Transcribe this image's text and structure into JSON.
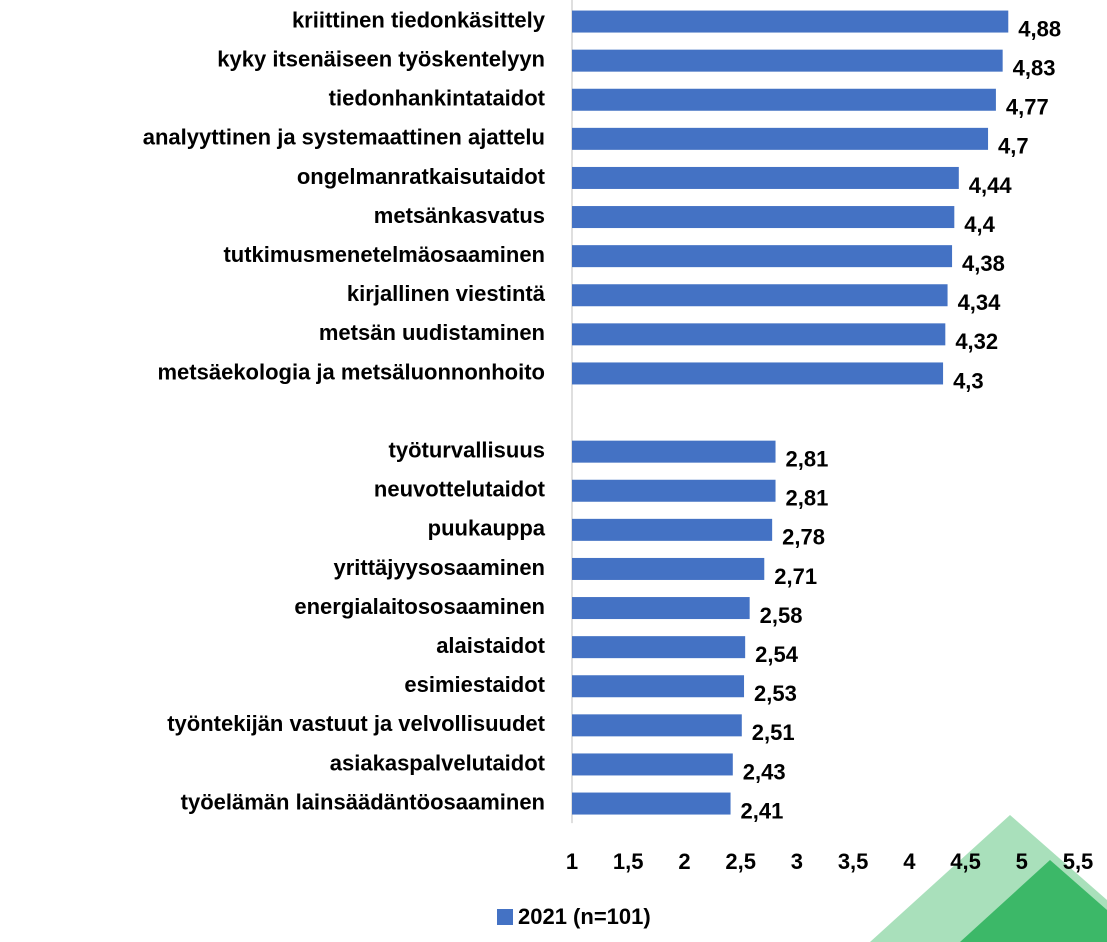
{
  "chart_data": {
    "type": "bar",
    "orientation": "horizontal",
    "categories": [
      "kriittinen tiedonkäsittely",
      "kyky itsenäiseen työskentelyyn",
      "tiedonhankintataidot",
      "analyyttinen ja systemaattinen ajattelu",
      "ongelmanratkaisutaidot",
      "metsänkasvatus",
      "tutkimusmenetelmäosaaminen",
      "kirjallinen viestintä",
      "metsän uudistaminen",
      "metsäekologia ja metsäluonnonhoito",
      null,
      "työturvallisuus",
      "neuvottelutaidot",
      "puukauppa",
      "yrittäjyysosaaminen",
      "energialaitososaaminen",
      "alaistaidot",
      "esimiestaidot",
      "työntekijän vastuut ja velvollisuudet",
      "asiakaspalvelutaidot",
      "työelämän lainsäädäntöosaaminen"
    ],
    "series": [
      {
        "name": "2021 (n=101)",
        "color": "#4472c4",
        "values": [
          4.88,
          4.83,
          4.77,
          4.7,
          4.44,
          4.4,
          4.38,
          4.34,
          4.32,
          4.3,
          null,
          2.81,
          2.81,
          2.78,
          2.71,
          2.58,
          2.54,
          2.53,
          2.51,
          2.43,
          2.41
        ],
        "value_labels": [
          "4,88",
          "4,83",
          "4,77",
          "4,7",
          "4,44",
          "4,4",
          "4,38",
          "4,34",
          "4,32",
          "4,3",
          null,
          "2,81",
          "2,81",
          "2,78",
          "2,71",
          "2,58",
          "2,54",
          "2,53",
          "2,51",
          "2,43",
          "2,41"
        ]
      }
    ],
    "xlim": [
      1,
      5.5
    ],
    "xticks": [
      1,
      {
        "value": 1.5,
        "label": "1,5"
      },
      2,
      {
        "value": 2.5,
        "label": "2,5"
      },
      3,
      {
        "value": 3.5,
        "label": "3,5"
      },
      4,
      {
        "value": 4.5,
        "label": "4,5"
      },
      5,
      {
        "value": 5.5,
        "label": "5,5"
      }
    ],
    "legend": "bottom"
  }
}
